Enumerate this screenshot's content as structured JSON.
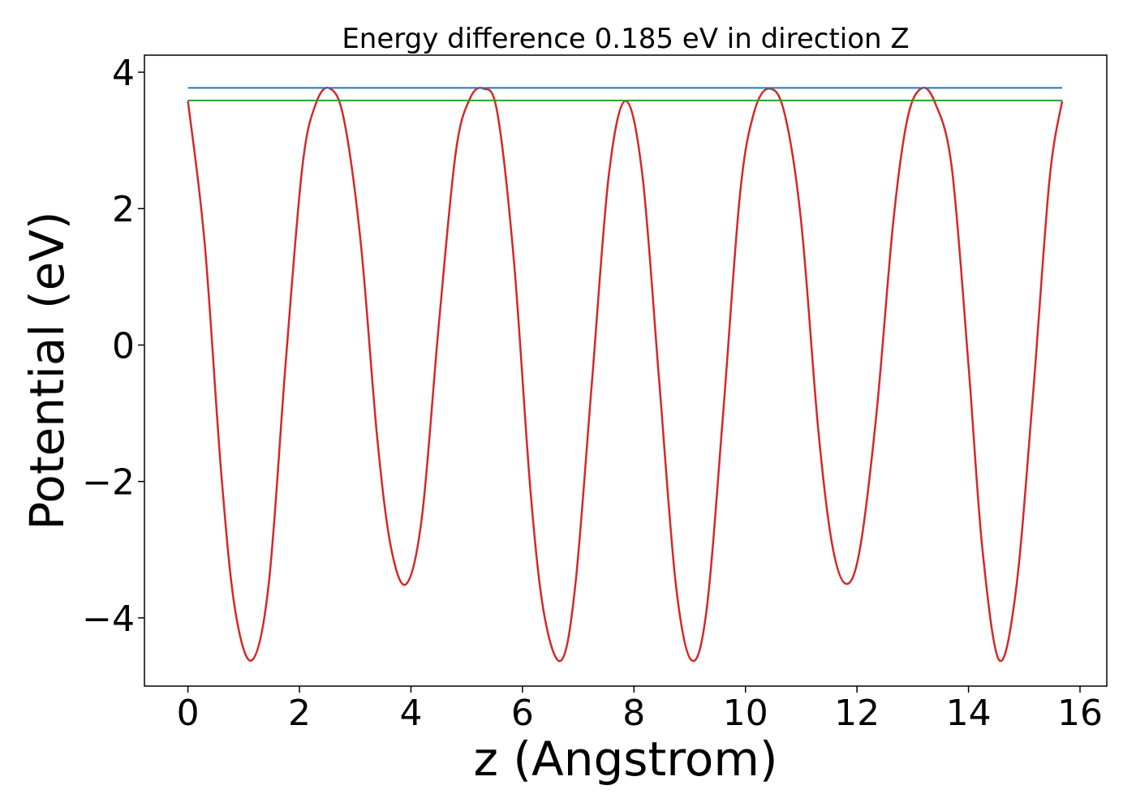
{
  "chart_data": {
    "type": "line",
    "title": "Energy difference 0.185 eV in direction Z",
    "xlabel": "z (Angstrom)",
    "ylabel": "Potential (eV)",
    "xlim": [
      -0.78,
      16.48
    ],
    "ylim": [
      -5.0,
      4.25
    ],
    "grid": false,
    "x_ticks": [
      0,
      2,
      4,
      6,
      8,
      10,
      12,
      14,
      16
    ],
    "x_tick_labels": [
      "0",
      "2",
      "4",
      "6",
      "8",
      "10",
      "12",
      "14",
      "16"
    ],
    "y_ticks": [
      -4,
      -2,
      0,
      2,
      4
    ],
    "y_tick_labels": [
      "−4",
      "−2",
      "0",
      "2",
      "4"
    ],
    "series": [
      {
        "color": "#d62728",
        "x": [
          0.0,
          0.3,
          0.6,
          0.85,
          1.15,
          1.45,
          1.75,
          2.05,
          2.3,
          2.55,
          2.8,
          3.1,
          3.4,
          3.65,
          3.92,
          4.2,
          4.5,
          4.8,
          5.05,
          5.3,
          5.55,
          5.85,
          6.15,
          6.4,
          6.7,
          6.95,
          7.25,
          7.55,
          7.85,
          8.15,
          8.45,
          8.75,
          9.03,
          9.3,
          9.6,
          9.9,
          10.15,
          10.42,
          10.7,
          11.0,
          11.3,
          11.55,
          11.8,
          12.05,
          12.35,
          12.65,
          12.9,
          13.15,
          13.4,
          13.7,
          14.0,
          14.25,
          14.55,
          14.85,
          15.15,
          15.45,
          15.68
        ],
        "y": [
          3.58,
          1.5,
          -1.9,
          -3.9,
          -4.62,
          -3.5,
          -0.3,
          2.6,
          3.55,
          3.76,
          3.3,
          1.5,
          -1.4,
          -3.0,
          -3.5,
          -2.5,
          0.3,
          2.8,
          3.6,
          3.76,
          3.4,
          1.2,
          -2.2,
          -4.0,
          -4.62,
          -3.5,
          -0.5,
          2.5,
          3.58,
          2.5,
          -0.5,
          -3.5,
          -4.62,
          -3.9,
          -1.0,
          2.2,
          3.4,
          3.76,
          3.4,
          1.8,
          -1.2,
          -2.9,
          -3.5,
          -3.0,
          -1.0,
          1.8,
          3.3,
          3.76,
          3.55,
          2.6,
          -0.3,
          -3.0,
          -4.62,
          -3.6,
          -0.8,
          2.4,
          3.58
        ]
      },
      {
        "color": "#1f77b4",
        "x": [
          0.0,
          15.68
        ],
        "y": [
          3.77,
          3.77
        ]
      },
      {
        "color": "#2ca02c",
        "x": [
          0.0,
          15.68
        ],
        "y": [
          3.585,
          3.585
        ]
      }
    ]
  }
}
